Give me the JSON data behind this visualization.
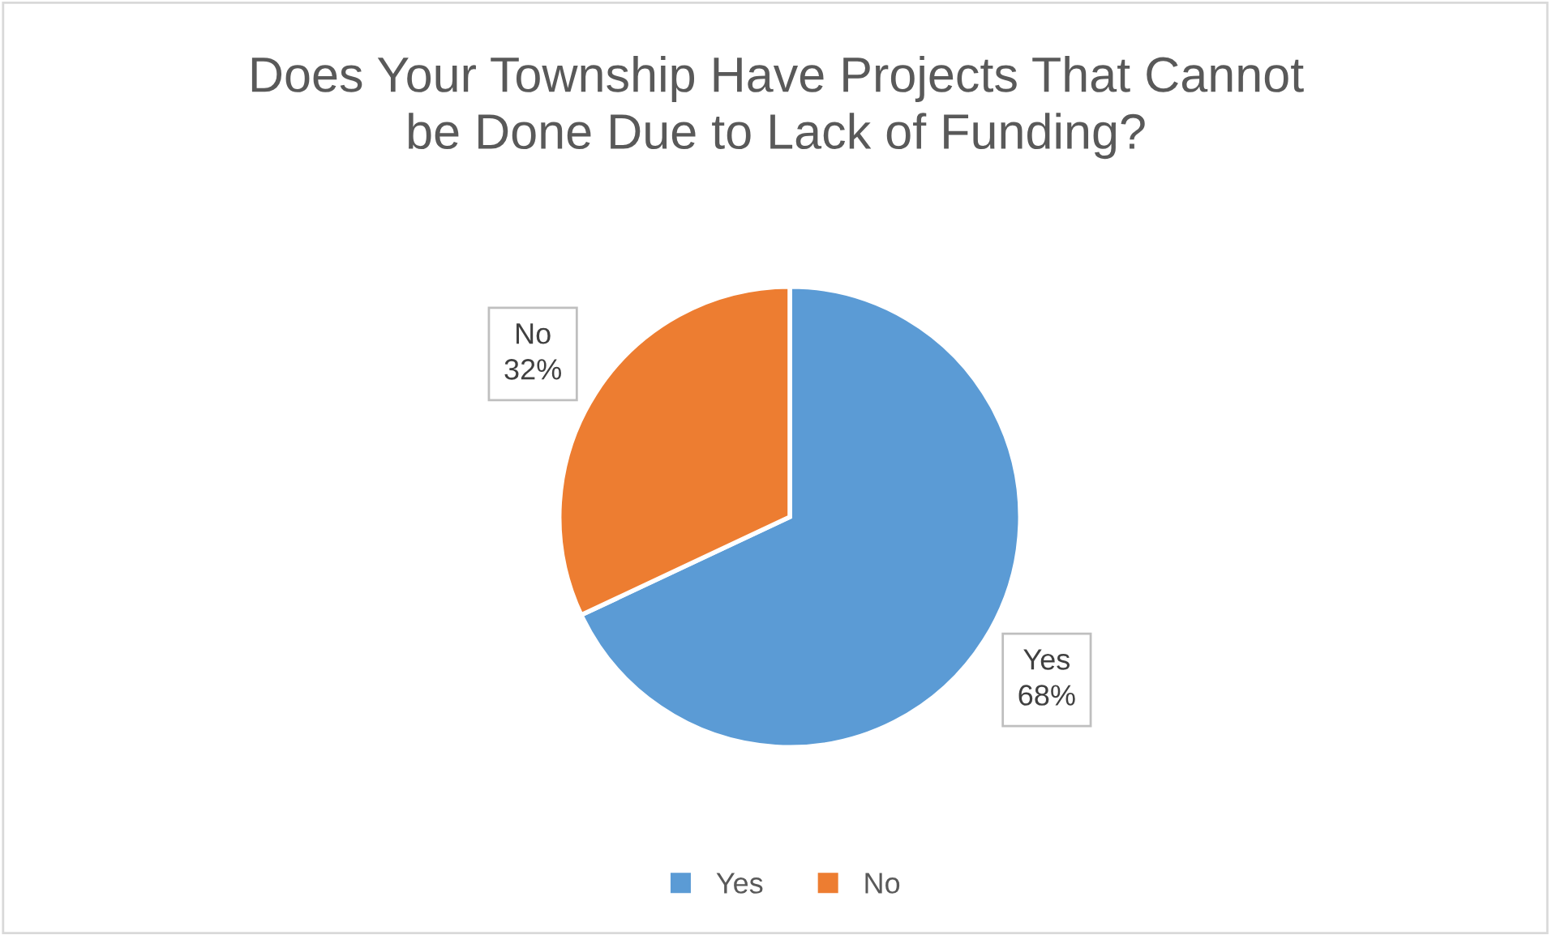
{
  "chart_data": {
    "type": "pie",
    "title": "Does Your Township Have Projects That Cannot\nbe Done Due to Lack of Funding?",
    "categories": [
      "Yes",
      "No"
    ],
    "values": [
      68,
      32
    ],
    "colors": [
      "#5b9bd5",
      "#ed7d31"
    ],
    "value_labels": [
      "68%",
      "32%"
    ],
    "legend": "bottom"
  }
}
